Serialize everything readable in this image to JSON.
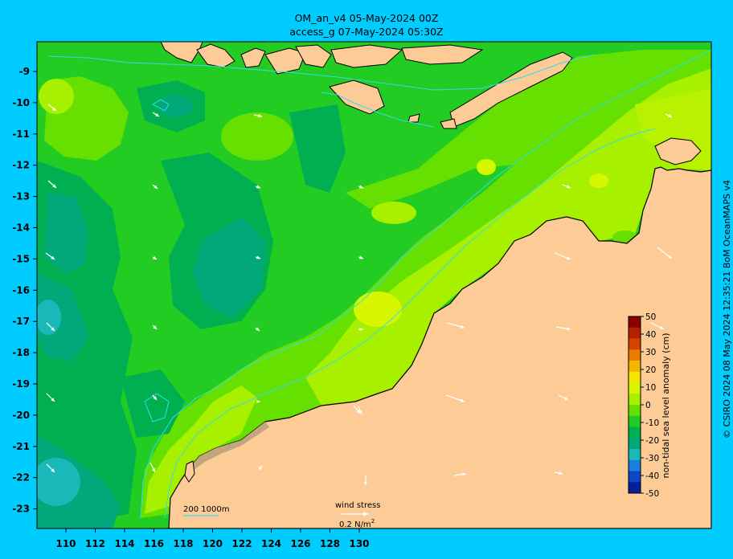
{
  "header": {
    "line1": "OM_an_v4  05-May-2024 00Z",
    "line2": "access_g 07-May-2024 05:30Z"
  },
  "axes": {
    "lon_ticks": [
      "110",
      "112",
      "114",
      "116",
      "118",
      "120",
      "122",
      "124",
      "126",
      "128",
      "130"
    ],
    "lat_ticks": [
      "-9",
      "-10",
      "-11",
      "-12",
      "-13",
      "-14",
      "-15",
      "-16",
      "-17",
      "-18",
      "-19",
      "-20",
      "-21",
      "-22",
      "-23"
    ]
  },
  "colorbar": {
    "label": "non-tidal sea level anomaly (cm)",
    "ticks": [
      "50",
      "40",
      "30",
      "20",
      "10",
      "0",
      "-10",
      "-20",
      "-30",
      "-40",
      "-50"
    ],
    "colors": [
      "#8b0000",
      "#b22200",
      "#d44400",
      "#ea7d00",
      "#f4b400",
      "#f3e800",
      "#d7f700",
      "#a6f000",
      "#66e000",
      "#22cc22",
      "#00b050",
      "#00a87a",
      "#1ab8b8",
      "#1a7fdc",
      "#0b46c8",
      "#061e96"
    ]
  },
  "legend": {
    "contours": "200  1000m",
    "wind_label": "wind stress",
    "wind_scale": "0.2 N/m",
    "wind_exp": "2"
  },
  "credit": "© CSIRO 2024  08 May 2024 12:35:21 BoM OceanMAPS v4",
  "colors": {
    "frame": "#00ccff",
    "land": "#fdcb95",
    "shelf": "#c2a67e",
    "coast": "#000000",
    "isobath": "#33ddee"
  }
}
